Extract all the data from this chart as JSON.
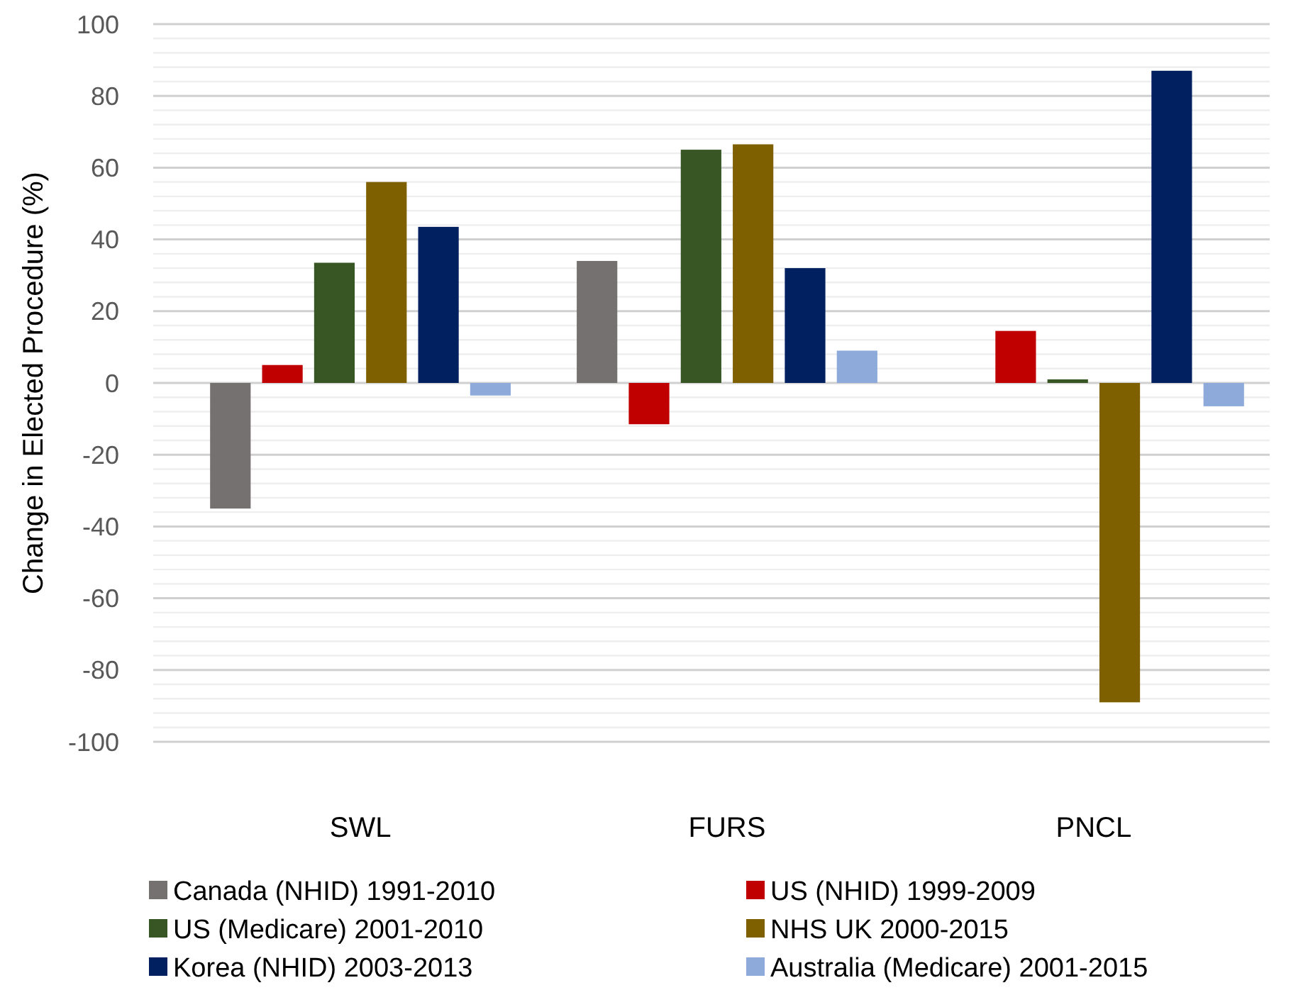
{
  "chart_data": {
    "type": "bar",
    "ylabel": "Change in Elected Procedure (%)",
    "categories": [
      "SWL",
      "FURS",
      "PNCL"
    ],
    "series": [
      {
        "name": "Canada (NHID) 1991-2010",
        "color": "#767171",
        "values": [
          -35,
          34,
          null
        ]
      },
      {
        "name": "US (NHID) 1999-2009",
        "color": "#c00000",
        "values": [
          5,
          -11.5,
          14.5
        ]
      },
      {
        "name": "US (Medicare) 2001-2010",
        "color": "#375623",
        "values": [
          33.5,
          65,
          1
        ]
      },
      {
        "name": "NHS UK 2000-2015",
        "color": "#7f6000",
        "values": [
          56,
          66.5,
          -89
        ]
      },
      {
        "name": "Korea (NHID) 2003-2013",
        "color": "#002060",
        "values": [
          43.5,
          32,
          87
        ]
      },
      {
        "name": "Australia (Medicare) 2001-2015",
        "color": "#8eaadb",
        "values": [
          -3.5,
          9,
          -6.5
        ]
      }
    ],
    "ylim": [
      -100,
      100
    ],
    "yticks": [
      -100,
      -80,
      -60,
      -40,
      -20,
      0,
      20,
      40,
      60,
      80,
      100
    ],
    "grid": "y",
    "legend": "bottom"
  }
}
